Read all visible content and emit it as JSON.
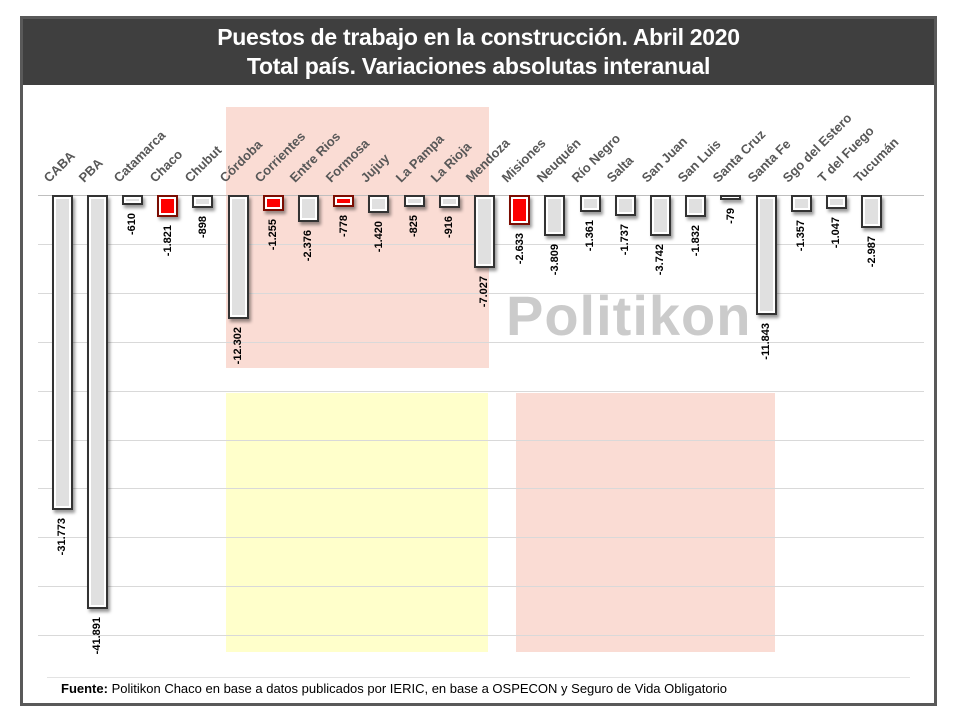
{
  "header": {
    "title_line1": "Puestos de trabajo en la construcción. Abril 2020",
    "title_line2": "Total país. Variaciones absolutas interanual"
  },
  "watermark": "Politikon",
  "footer": {
    "label_bold": "Fuente:",
    "text": " Politikon Chaco en base a datos publicados por IERIC, en base a OSPECON y Seguro de Vida Obligatorio"
  },
  "chart_data": {
    "type": "bar",
    "title": "Puestos de trabajo en la construcción. Abril 2020",
    "subtitle": "Total país. Variaciones absolutas interanual",
    "orientation": "vertical-negative",
    "categories": [
      "CABA",
      "PBA",
      "Catamarca",
      "Chaco",
      "Chubut",
      "Córdoba",
      "Corrientes",
      "Entre Rios",
      "Formosa",
      "Jujuy",
      "La Pampa",
      "La Rioja",
      "Mendoza",
      "Misiones",
      "Neuquén",
      "Río Negro",
      "Salta",
      "San Juan",
      "San Luis",
      "Santa Cruz",
      "Santa Fe",
      "Sgo del Estero",
      "T del Fuego",
      "Tucumán"
    ],
    "values": [
      -31773,
      -41891,
      -610,
      -1821,
      -898,
      -12302,
      -1255,
      -2376,
      -778,
      -1420,
      -825,
      -916,
      -7027,
      -2633,
      -3809,
      -1361,
      -1737,
      -3742,
      -1832,
      -79,
      -11843,
      -1357,
      -1047,
      -2987
    ],
    "value_labels": [
      "-31.773",
      "-41.891",
      "-610",
      "-1.821",
      "-898",
      "-12.302",
      "-1.255",
      "-2.376",
      "-778",
      "-1.420",
      "-825",
      "-916",
      "-7.027",
      "-2.633",
      "-3.809",
      "-1.361",
      "-1.737",
      "-3.742",
      "-1.832",
      "-79",
      "-11.843",
      "-1.357",
      "-1.047",
      "-2.987"
    ],
    "highlighted_red_categories": [
      "Chaco",
      "Corrientes",
      "Formosa",
      "Misiones"
    ],
    "xlabel": "",
    "ylabel": "",
    "ylim": [
      -45000,
      0
    ],
    "gridline_step": 5000,
    "grid": "horizontal",
    "legend": "none",
    "colors": {
      "bar_fill": "#e0e0e0",
      "bar_border": "#333333",
      "red_fill": "#fe0000",
      "red_border": "#7b0d02",
      "header_bg": "#3f3f3f",
      "frame_border": "#595959",
      "gridline": "#d9d9d9",
      "watermark": "#c7c7c7",
      "category_label": "#575757",
      "value_label": "#000000"
    },
    "regions": [
      {
        "name": "top-pink-highlight",
        "color": "#fadcd4",
        "spans": "Córdoba–Mendoza"
      },
      {
        "name": "bottom-yellow-highlight",
        "color": "#ffffcb",
        "spans": "Córdoba–Mendoza"
      },
      {
        "name": "bottom-pink-highlight",
        "color": "#fadcd4",
        "spans": "Misiones–Santa Fe"
      }
    ]
  }
}
